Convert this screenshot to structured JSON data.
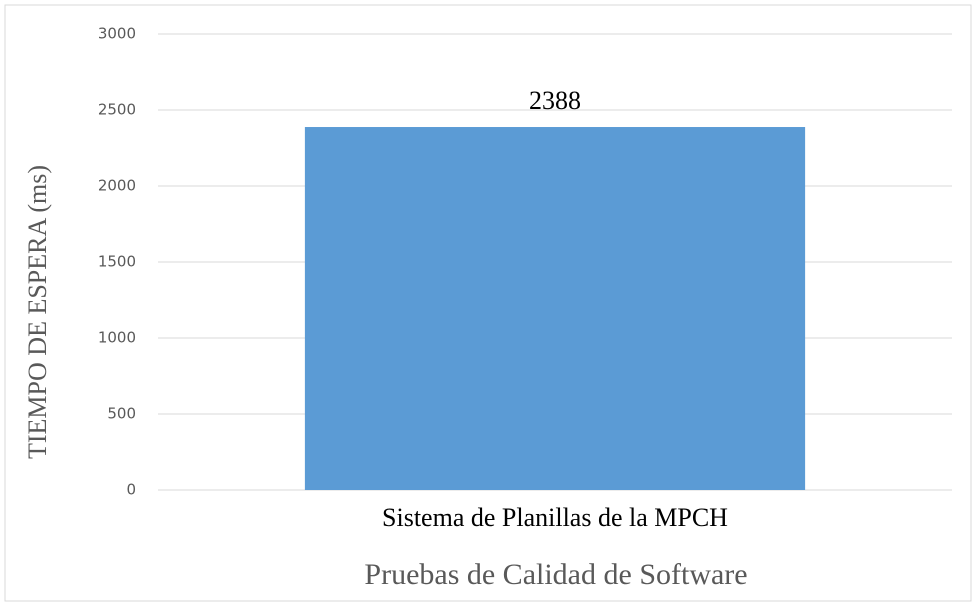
{
  "chart_data": {
    "type": "bar",
    "categories": [
      "Sistema de Planillas de la MPCH"
    ],
    "values": [
      2388
    ],
    "color": "#5b9bd5",
    "ylim": [
      0,
      3000
    ],
    "yticks": [
      0,
      500,
      1000,
      1500,
      2000,
      2500,
      3000
    ],
    "grid": true,
    "ylabel": "TIEMPO DE ESPERA (ms)",
    "xlabel": "Pruebas de Calidad de Software"
  }
}
